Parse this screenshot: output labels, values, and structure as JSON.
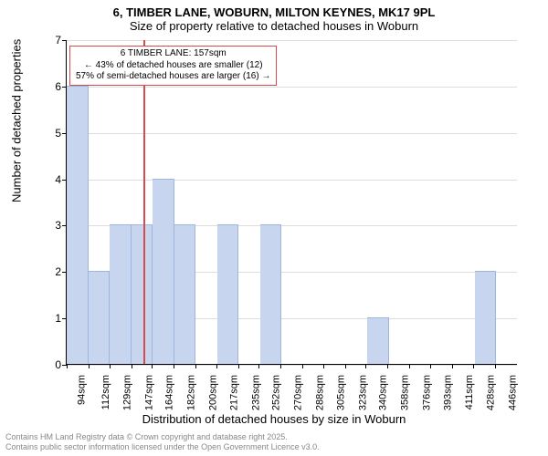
{
  "title_line1": "6, TIMBER LANE, WOBURN, MILTON KEYNES, MK17 9PL",
  "title_line2": "Size of property relative to detached houses in Woburn",
  "ylabel": "Number of detached properties",
  "xlabel": "Distribution of detached houses by size in Woburn",
  "footer_line1": "Contains HM Land Registry data © Crown copyright and database right 2025.",
  "footer_line2": "Contains public sector information licensed under the Open Government Licence v3.0.",
  "chart": {
    "type": "histogram",
    "ylim": [
      0,
      7
    ],
    "yticks": [
      0,
      1,
      2,
      3,
      4,
      5,
      6,
      7
    ],
    "grid_color": "#dddddd",
    "bar_color": "#c7d5ee",
    "bar_border": "#9fb6dc",
    "ref_color": "#d94a4e",
    "x_start": 94,
    "x_bin_width": 17.67,
    "n_bins": 21,
    "reference_x": 157,
    "bars": [
      {
        "h": 6
      },
      {
        "h": 2
      },
      {
        "h": 3
      },
      {
        "h": 3
      },
      {
        "h": 4
      },
      {
        "h": 3
      },
      {
        "h": 0
      },
      {
        "h": 3
      },
      {
        "h": 0
      },
      {
        "h": 3
      },
      {
        "h": 0
      },
      {
        "h": 0
      },
      {
        "h": 0
      },
      {
        "h": 0
      },
      {
        "h": 1
      },
      {
        "h": 0
      },
      {
        "h": 0
      },
      {
        "h": 0
      },
      {
        "h": 0
      },
      {
        "h": 2
      },
      {
        "h": 0
      }
    ],
    "xticks": [
      94,
      112,
      129,
      147,
      164,
      182,
      200,
      217,
      235,
      252,
      270,
      288,
      305,
      323,
      340,
      358,
      376,
      393,
      411,
      428,
      446
    ],
    "xticklabels": [
      "94sqm",
      "112sqm",
      "129sqm",
      "147sqm",
      "164sqm",
      "182sqm",
      "200sqm",
      "217sqm",
      "235sqm",
      "252sqm",
      "270sqm",
      "288sqm",
      "305sqm",
      "323sqm",
      "340sqm",
      "358sqm",
      "376sqm",
      "393sqm",
      "411sqm",
      "428sqm",
      "446sqm"
    ]
  },
  "annotation": {
    "line1": "6 TIMBER LANE: 157sqm",
    "line2": "← 43% of detached houses are smaller (12)",
    "line3": "57% of semi-detached houses are larger (16) →"
  }
}
